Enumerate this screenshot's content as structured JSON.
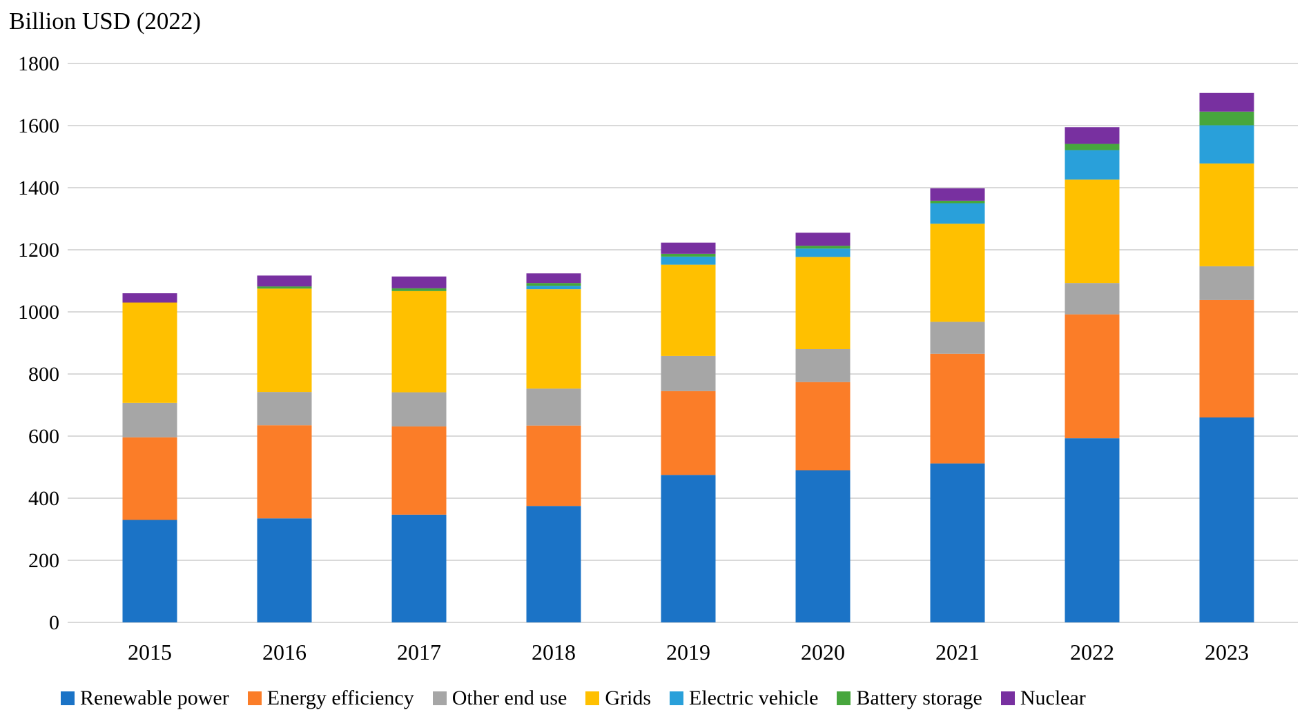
{
  "title": "Billion USD (2022)",
  "chart_data": {
    "type": "bar",
    "stacked": true,
    "title": "Billion USD (2022)",
    "xlabel": "",
    "ylabel": "Billion USD (2022)",
    "ylim": [
      0,
      1800
    ],
    "ytick_step": 200,
    "yticks": [
      "0",
      "200",
      "400",
      "600",
      "800",
      "1000",
      "1200",
      "1400",
      "1600",
      "1800"
    ],
    "grid": true,
    "gridline_color": "#D9D9D9",
    "legend_position": "bottom",
    "categories": [
      "2015",
      "2016",
      "2017",
      "2018",
      "2019",
      "2020",
      "2021",
      "2022",
      "2023"
    ],
    "series": [
      {
        "name": "Renewable power",
        "color": "#1B73C6",
        "values": [
          330,
          335,
          347,
          375,
          475,
          490,
          512,
          593,
          660
        ]
      },
      {
        "name": "Energy efficiency",
        "color": "#FB7D28",
        "values": [
          266,
          300,
          284,
          259,
          270,
          284,
          353,
          399,
          378
        ]
      },
      {
        "name": "Other end use",
        "color": "#A6A6A6",
        "values": [
          111,
          107,
          110,
          119,
          113,
          106,
          103,
          101,
          109
        ]
      },
      {
        "name": "Grids",
        "color": "#FFC000",
        "values": [
          323,
          333,
          326,
          320,
          294,
          297,
          316,
          333,
          331
        ]
      },
      {
        "name": "Electric vehicle",
        "color": "#29A0DA",
        "values": [
          0,
          0,
          0,
          11,
          26,
          27,
          66,
          95,
          123
        ]
      },
      {
        "name": "Battery storage",
        "color": "#47A63D",
        "values": [
          0,
          7,
          9,
          9,
          9,
          9,
          8,
          20,
          44
        ]
      },
      {
        "name": "Nuclear",
        "color": "#7830A0",
        "values": [
          30,
          35,
          38,
          31,
          36,
          42,
          40,
          54,
          60
        ]
      }
    ],
    "totals": [
      1060,
      1117,
      1114,
      1124,
      1223,
      1255,
      1398,
      1595,
      1705
    ]
  }
}
